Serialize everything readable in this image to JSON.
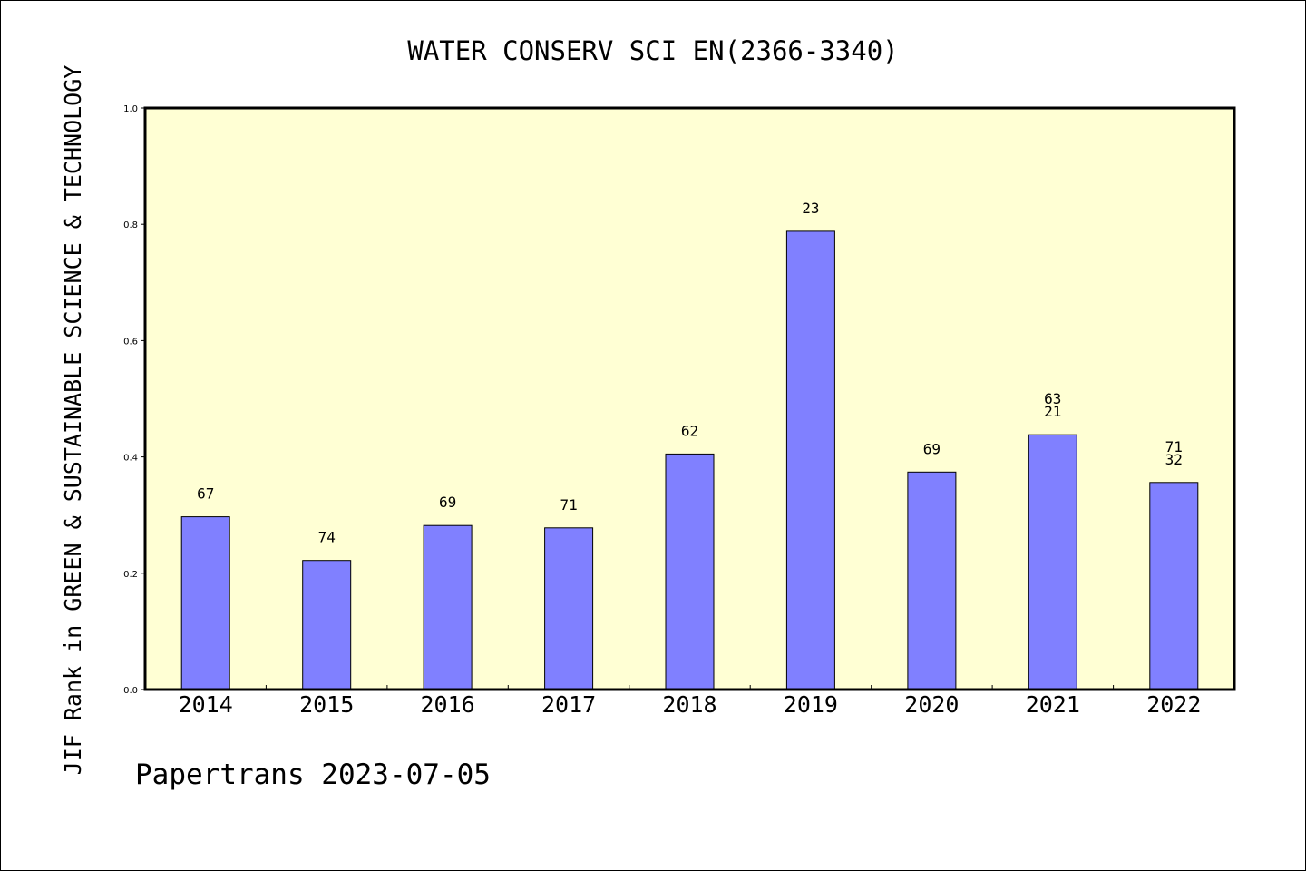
{
  "chart_data": {
    "type": "bar",
    "title": "WATER CONSERV SCI EN(2366-3340)",
    "ylabel": "JIF Rank in GREEN & SUSTAINABLE SCIENCE & TECHNOLOGY",
    "xlabel": "",
    "ylim": [
      0,
      1.0
    ],
    "yticks": [
      "0.0",
      "0.2",
      "0.4",
      "0.6",
      "0.8",
      "1.0"
    ],
    "categories": [
      "2014",
      "2015",
      "2016",
      "2017",
      "2018",
      "2019",
      "2020",
      "2021",
      "2022"
    ],
    "values": [
      0.297,
      0.222,
      0.282,
      0.278,
      0.405,
      0.788,
      0.374,
      0.438,
      0.356
    ],
    "bar_labels": [
      [
        "67"
      ],
      [
        "74"
      ],
      [
        "69"
      ],
      [
        "71"
      ],
      [
        "62"
      ],
      [
        "23"
      ],
      [
        "69"
      ],
      [
        "63",
        "21"
      ],
      [
        "71",
        "32"
      ]
    ],
    "colors": {
      "bar": "#8080ff",
      "plot_background": "#ffffd4"
    },
    "grid": false
  },
  "footer": "Papertrans 2023-07-05"
}
